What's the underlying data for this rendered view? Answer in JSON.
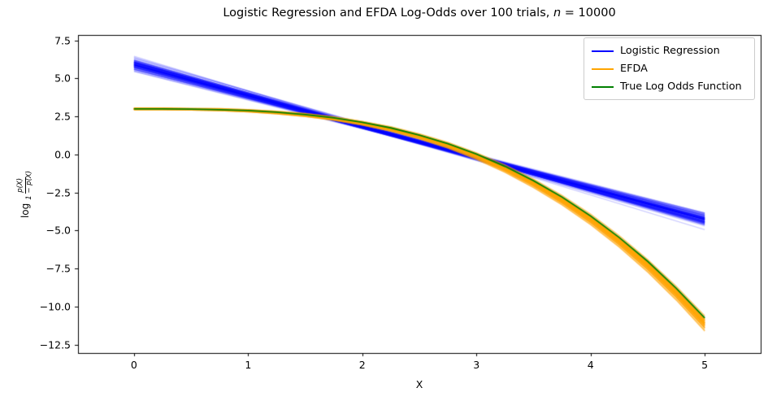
{
  "title": {
    "plain": "Logistic Regression and EFDA Log-Odds over 100 trials, ",
    "math_var": "n",
    "math_rest": " = 10000"
  },
  "axes": {
    "xlabel": "X",
    "ylabel": {
      "prefix": "log",
      "numerator": "p(X)",
      "denominator": "1 − p(X)"
    },
    "xtick_labels": [
      "0",
      "1",
      "2",
      "3",
      "4",
      "5"
    ],
    "ytick_labels": [
      "7.5",
      "5.0",
      "2.5",
      "0.0",
      "−2.5",
      "−5.0",
      "−7.5",
      "−10.0",
      "−12.5"
    ]
  },
  "legend": {
    "position": "upper right"
  },
  "chart_data": {
    "type": "line",
    "title": "Logistic Regression and EFDA Log-Odds over 100 trials, n = 10000",
    "xlabel": "X",
    "ylabel": "log p(X)/(1-p(X))",
    "xlim": [
      -0.49,
      5.49
    ],
    "ylim": [
      -13.05,
      7.86
    ],
    "xticks": [
      0,
      1,
      2,
      3,
      4,
      5
    ],
    "yticks": [
      7.5,
      5.0,
      2.5,
      0.0,
      -2.5,
      -5.0,
      -7.5,
      -10.0,
      -12.5
    ],
    "grid": false,
    "legend_position": "upper right",
    "trials": 100,
    "n": 10000,
    "x": [
      0,
      0.25,
      0.5,
      0.75,
      1,
      1.25,
      1.5,
      1.75,
      2,
      2.25,
      2.5,
      2.75,
      3,
      3.25,
      3.5,
      3.75,
      4,
      4.25,
      4.5,
      4.75,
      5
    ],
    "series": [
      {
        "name": "Logistic Regression",
        "color": "#0000ff",
        "style": "ensemble-linear",
        "trials": 100,
        "pivot_x": 2.5,
        "pivot_value": 0.815,
        "slope": -2.034,
        "center_sd": 0.08,
        "slope_sd": 0.075,
        "values": [
          5.9,
          5.39,
          4.88,
          4.37,
          3.87,
          3.36,
          2.85,
          2.34,
          1.83,
          1.32,
          0.82,
          0.31,
          -0.2,
          -0.71,
          -1.22,
          -1.73,
          -2.24,
          -2.74,
          -3.25,
          -3.76,
          -4.27
        ]
      },
      {
        "name": "EFDA",
        "color": "#ffa500",
        "style": "ensemble-curve",
        "trials": 100,
        "values": [
          3.0,
          3.0,
          2.98,
          2.95,
          2.88,
          2.76,
          2.6,
          2.37,
          2.06,
          1.68,
          1.19,
          0.61,
          -0.1,
          -0.92,
          -1.89,
          -3.0,
          -4.26,
          -5.7,
          -7.31,
          -9.11,
          -11.1
        ],
        "spread": [
          0.06,
          0.06,
          0.06,
          0.07,
          0.08,
          0.09,
          0.1,
          0.11,
          0.12,
          0.14,
          0.16,
          0.18,
          0.2,
          0.23,
          0.26,
          0.29,
          0.32,
          0.35,
          0.38,
          0.42,
          0.46
        ]
      },
      {
        "name": "True Log Odds Function",
        "color": "#008000",
        "style": "line",
        "values": [
          3.0,
          3.0,
          2.99,
          2.95,
          2.89,
          2.79,
          2.63,
          2.41,
          2.12,
          1.75,
          1.28,
          0.71,
          0.03,
          -0.78,
          -1.72,
          -2.8,
          -4.04,
          -5.45,
          -7.02,
          -8.79,
          -10.75
        ]
      }
    ]
  }
}
